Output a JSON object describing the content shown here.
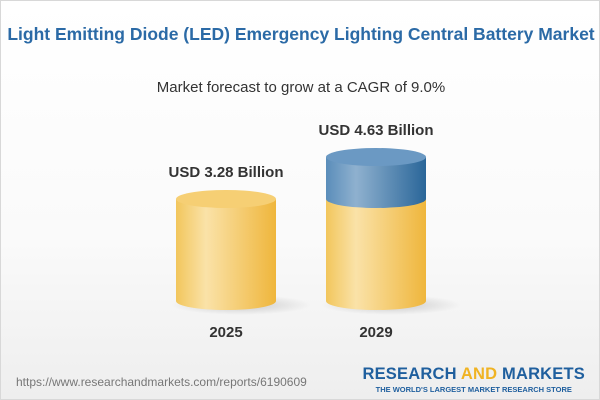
{
  "chart_data": {
    "type": "bar",
    "style": "3d-cylinder",
    "title": "Light Emitting Diode (LED) Emergency Lighting Central Battery Market",
    "subtitle": "Market forecast to grow at a CAGR of 9.0%",
    "categories": [
      "2025",
      "2029"
    ],
    "values": [
      3.28,
      4.63
    ],
    "unit": "USD Billion",
    "data_labels": [
      "USD 3.28 Billion",
      "USD 4.63 Billion"
    ],
    "colors": {
      "base": "#f2c14e",
      "growth": "#3f78a8",
      "title": "#2b6aa6"
    }
  },
  "footer": {
    "url": "https://www.researchandmarkets.com/reports/6190609",
    "logo_part1": "RESEARCH ",
    "logo_part2": "AND",
    "logo_part3": " MARKETS",
    "tagline": "THE WORLD'S LARGEST MARKET RESEARCH STORE"
  }
}
